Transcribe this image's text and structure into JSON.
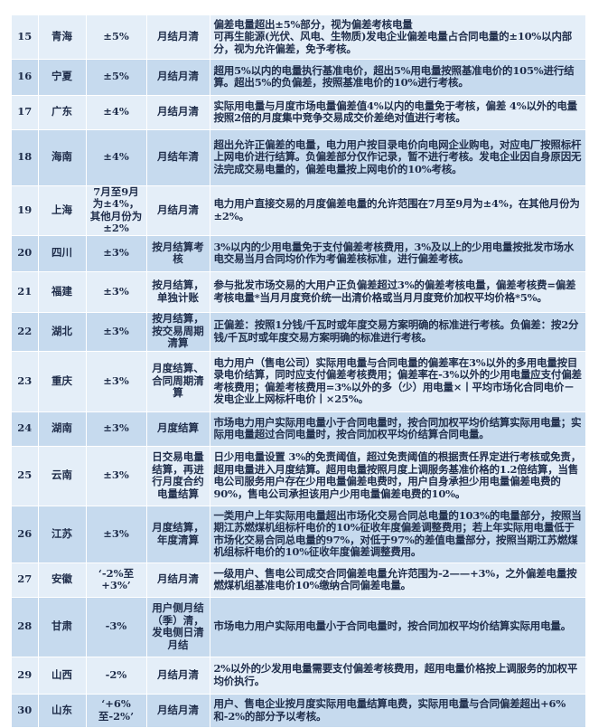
{
  "colors": {
    "row_light": "#e4eef8",
    "row_dark": "#c6daee",
    "text": "#1f2d4a"
  },
  "rows": [
    {
      "no": "15",
      "province": "青海",
      "range": "±5%",
      "settlement": "月结月清",
      "desc": "偏差电量超出±5%部分，视为偏差考核电量\n可再生能源(光伏、风电、生物质)发电企业偏差电量占合同电量的±10%以内部分，视为允许偏差，免予考核。"
    },
    {
      "no": "16",
      "province": "宁夏",
      "range": "±5%",
      "settlement": "月结月清",
      "desc": "超用5%以内的电量执行基准电价，超出5%用电量按照基准电价的105%进行结算。超出5%的负偏差，按照基准电价的10%进行考核。"
    },
    {
      "no": "17",
      "province": "广东",
      "range": "±4%",
      "settlement": "月结月清",
      "desc": "实际用电量与月度市场电量偏差值4%以内的电量免于考核，偏差 4%以外的电量按照2倍的月度集中竞争交易成交价差绝对值进行考核。"
    },
    {
      "no": "18",
      "province": "海南",
      "range": "±4%",
      "settlement": "月结年清",
      "desc": "超出允许正偏差的电量，电力用户按目录电价向电网企业购电，对应电厂按照标杆上网电价进行结算。负偏差部分仅作记录，暂不进行考核。发电企业因自身原因无法完成交易电量的，偏差电量按上网电价的10%考核。"
    },
    {
      "no": "19",
      "province": "上海",
      "range": "7月至9月为±4%，其他月份为±2%",
      "settlement": "月结月清",
      "desc": "电力用户直接交易的月度偏差电量的允许范围在7月至9月为±4%，在其他月份为±2%。"
    },
    {
      "no": "20",
      "province": "四川",
      "range": "±3%",
      "settlement": "按月结算考核",
      "desc": "3%以内的少用电量免于支付偏差考核费用，3%及以上的少用电量按批发市场水电交易当月合同均价作为考偏差核标准，进行偏差考核。"
    },
    {
      "no": "21",
      "province": "福建",
      "range": "±3%",
      "settlement": "按月结算，单独计账",
      "desc": "参与批发市场交易的大用户正负偏差超过3%的偏差考核电量，偏差考核费=偏差考核电量*当月月度竞价统一出清价格或当月月度竞价加权平均价格*5%。"
    },
    {
      "no": "22",
      "province": "湖北",
      "range": "±3%",
      "settlement": "按月结算，按交易周期清算",
      "desc": "正偏差：按照1分钱/千瓦时或年度交易方案明确的标准进行考核。负偏差：按2分钱/千瓦时或年度交易方案明确的标准进行考核。"
    },
    {
      "no": "23",
      "province": "重庆",
      "range": "±3%",
      "settlement": "月度结算、合同周期清算",
      "desc": "电力用户（售电公司）实际用电量与合同电量的偏差率在3%以外的多用电量按目录电价结算，同时应支付偏差考核费用；偏差率在-3%以外的少用电量应支付偏差考核费用；偏差考核费用=3%以外的多（少）用电量×丨平均市场化合同电价－发电企业上网标杆电价丨×25%。"
    },
    {
      "no": "24",
      "province": "湖南",
      "range": "±3%",
      "settlement": "月度结算",
      "desc": "市场电力用户实际用电量小于合同电量时，按合同加权平均价结算实际用电量；实际用电量超过合同电量时，按合同加权平均价结算合同电量。"
    },
    {
      "no": "25",
      "province": "云南",
      "range": "±3%",
      "settlement": "日交易电量结算，再进行月度合约电量结算",
      "desc": "日少用电量设置 3%的免责阈值，超过免责阈值的根据责任界定进行考核或免责，超用电量进入月度结算。超用电量按照月度上调服务基准价格的1.2倍结算，当售电公司服务用户存在少用电量偏差电费时，用户自身承担少用电量偏差电费的90%，售电公司承担该用户少用电量偏差电费的10%。"
    },
    {
      "no": "26",
      "province": "江苏",
      "range": "±3%",
      "settlement": "月度结算，年度清算",
      "desc": "一类用户上年实际用电量超出市场化交易合同总电量的103%的电量部分，按照当期江苏燃煤机组标杆电价的10%征收年度偏差调整费用；若上年实际用电量低于市场化交易合同总电量的97%，对低于97%的差值电量部分，按照当期江苏燃煤机组标杆电价的10%征收年度偏差调整费用。"
    },
    {
      "no": "27",
      "province": "安徽",
      "range": "‘-2%至+3%’",
      "settlement": "月结月清",
      "desc": "一级用户、售电公司成交合同偏差电量允许范围为-2——+3%，之外偏差电量按燃煤机组基准电价10%缴纳合同偏差电量。"
    },
    {
      "no": "28",
      "province": "甘肃",
      "range": "-3%",
      "settlement": "用户侧月结（季）清，发电侧日清月结",
      "desc": "市场电力用户实际用电量小于合同电量时，按合同加权平均价结算实际用电量。"
    },
    {
      "no": "29",
      "province": "山西",
      "range": "-2%",
      "settlement": "月结月清",
      "desc": "2%以外的少发用电量需要支付偏差考核费用，超用电量价格按上调服务的加权平均价执行。"
    },
    {
      "no": "30",
      "province": "山东",
      "range": "‘+6%至-2%’",
      "settlement": "月结月清",
      "desc": "用户、售电企业按月度实际用电量结算电费，实际用电量与合同偏差超出+6%和-2%的部分予以考核。"
    }
  ]
}
